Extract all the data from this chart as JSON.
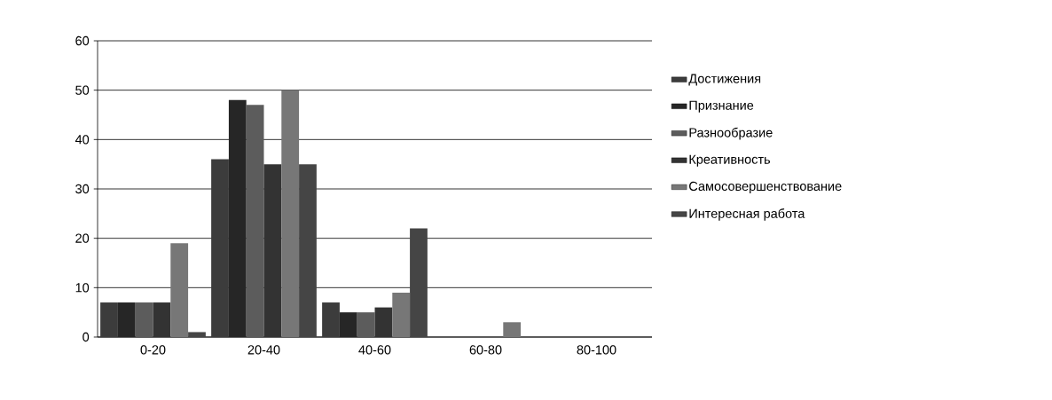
{
  "chart_data": {
    "type": "bar",
    "categories": [
      "0-20",
      "20-40",
      "40-60",
      "60-80",
      "80-100"
    ],
    "series": [
      {
        "name": "Достижения",
        "color": "#3c3c3c",
        "values": [
          7,
          36,
          7,
          0,
          0
        ]
      },
      {
        "name": "Признание",
        "color": "#262626",
        "values": [
          7,
          48,
          5,
          0,
          0
        ]
      },
      {
        "name": "Разнообразие",
        "color": "#5c5c5c",
        "values": [
          7,
          47,
          5,
          0,
          0
        ]
      },
      {
        "name": "Креативность",
        "color": "#333333",
        "values": [
          7,
          35,
          6,
          0,
          0
        ]
      },
      {
        "name": "Самосовершенствование",
        "color": "#777777",
        "values": [
          19,
          50,
          9,
          3,
          0
        ]
      },
      {
        "name": "Интересная работа",
        "color": "#454545",
        "values": [
          1,
          35,
          22,
          0,
          0
        ]
      }
    ],
    "ylim": [
      0,
      60
    ],
    "yticks": [
      0,
      10,
      20,
      30,
      40,
      50,
      60
    ],
    "grid": "y",
    "legend": "right"
  }
}
